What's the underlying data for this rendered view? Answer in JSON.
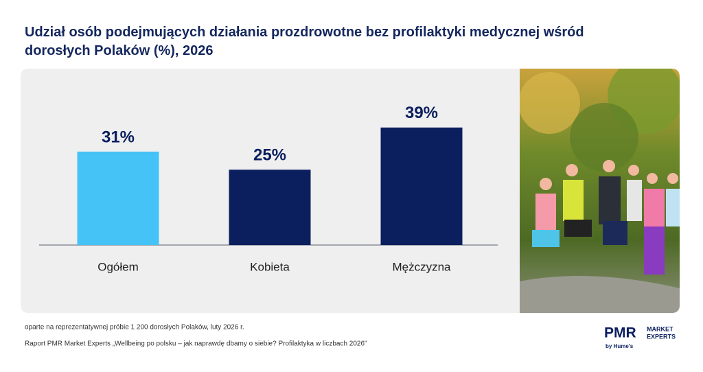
{
  "chart_data": {
    "type": "bar",
    "title": "Udział osób podejmujących działania prozdrowotne bez profilaktyki medycznej wśród dorosłych Polaków (%), 2026",
    "categories": [
      "Ogółem",
      "Kobieta",
      "Mężczyzna"
    ],
    "values": [
      31,
      25,
      39
    ],
    "value_labels": [
      "31%",
      "25%",
      "39%"
    ],
    "colors": [
      "#45c3f7",
      "#0b1f5e",
      "#0b1f5e"
    ]
  },
  "footer": {
    "note": "oparte na reprezentatywnej próbie 1 200 dorosłych Polaków, luty 2026 r.",
    "source": "Raport PMR Market Experts „Wellbeing po polsku – jak naprawdę dbamy o siebie? Profilaktyka w liczbach 2026”"
  },
  "logo": {
    "name": "PMR",
    "line1": "MARKET",
    "line2": "EXPERTS",
    "byline": "by Hume's"
  }
}
